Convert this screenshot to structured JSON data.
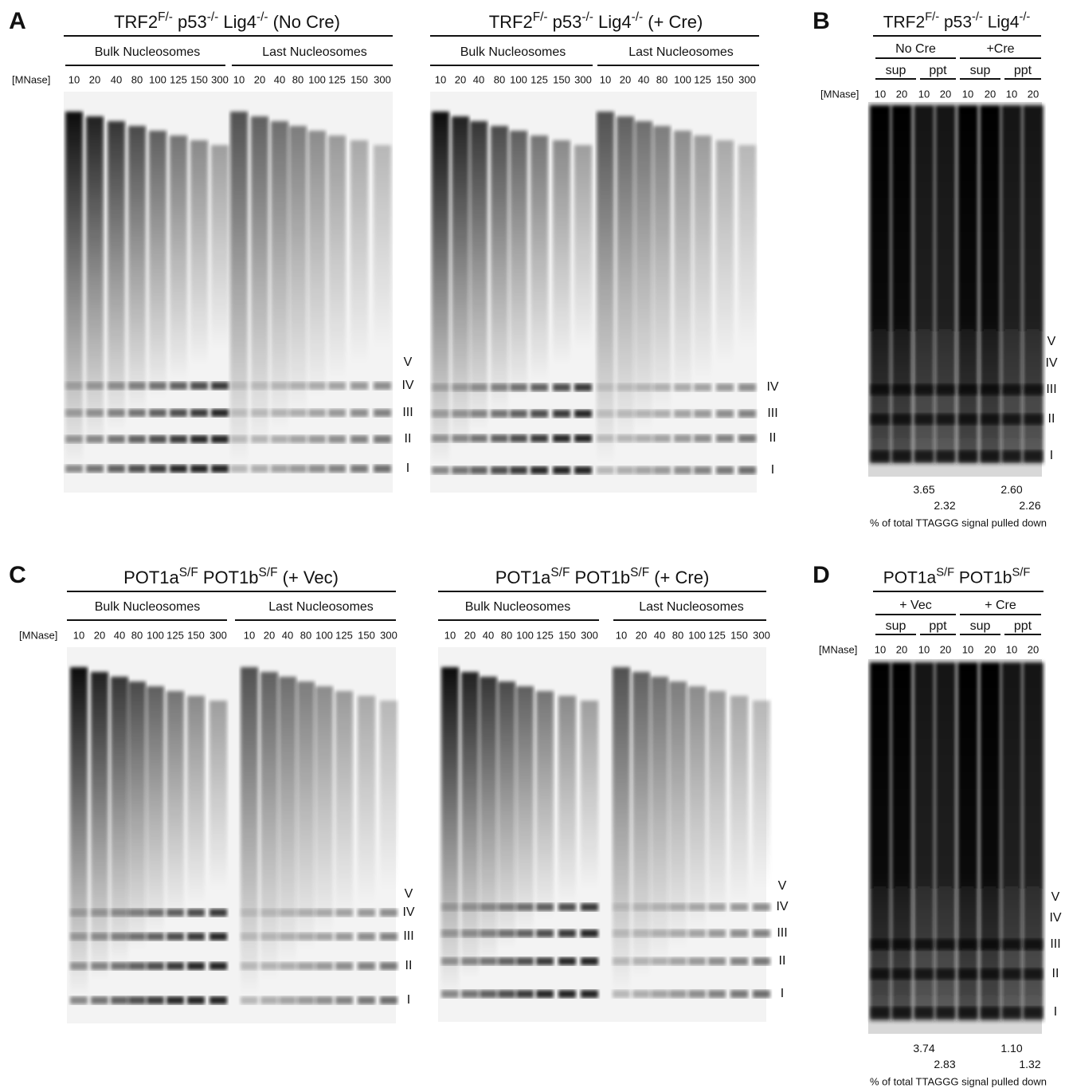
{
  "panels": [
    {
      "letter": "A",
      "mnase_label": "[MNase]",
      "lanes": [
        "10",
        "20",
        "40",
        "80",
        "100",
        "125",
        "150",
        "300"
      ],
      "gels": [
        {
          "title": [
            "TRF2",
            "F/-",
            " p53",
            "-/-",
            " Lig4",
            "-/-",
            " (No Cre)"
          ],
          "groups": [
            "Bulk Nucleosomes",
            "Last Nucleosomes"
          ],
          "markers": [
            "V",
            "IV",
            "III",
            "II",
            "I"
          ]
        },
        {
          "title": [
            "TRF2",
            "F/-",
            " p53",
            "-/-",
            " Lig4",
            "-/-",
            " (+ Cre)"
          ],
          "groups": [
            "Bulk Nucleosomes",
            "Last Nucleosomes"
          ],
          "markers": [
            "IV",
            "III",
            "II",
            "I"
          ]
        }
      ]
    },
    {
      "letter": "B",
      "title": [
        "TRF2",
        "F/-",
        " p53",
        "-/-",
        " Lig4",
        "-/-"
      ],
      "conditions": [
        "No Cre",
        "+Cre"
      ],
      "fractions": [
        "sup",
        "ppt"
      ],
      "mnase_label": "[MNase]",
      "lanes": [
        "10",
        "20"
      ],
      "markers": [
        "V",
        "IV",
        "III",
        "II",
        "I"
      ],
      "quant_top": [
        "3.65",
        "2.60"
      ],
      "quant_bottom": [
        "2.32",
        "2.26"
      ],
      "caption": "% of total TTAGGG signal pulled down"
    },
    {
      "letter": "C",
      "mnase_label": "[MNase]",
      "lanes": [
        "10",
        "20",
        "40",
        "80",
        "100",
        "125",
        "150",
        "300"
      ],
      "gels": [
        {
          "title": [
            "POT1a",
            "S/F",
            " POT1b",
            "S/F",
            " (+ Vec)"
          ],
          "groups": [
            "Bulk Nucleosomes",
            "Last Nucleosomes"
          ],
          "markers": [
            "V",
            "IV",
            "III",
            "II",
            "I"
          ]
        },
        {
          "title": [
            "POT1a",
            "S/F",
            " POT1b",
            "S/F",
            " (+ Cre)"
          ],
          "groups": [
            "Bulk Nucleosomes",
            "Last Nucleosomes"
          ],
          "markers": [
            "V",
            "IV",
            "III",
            "II",
            "I"
          ]
        }
      ]
    },
    {
      "letter": "D",
      "title": [
        "POT1a",
        "S/F",
        " POT1b",
        "S/F"
      ],
      "conditions": [
        "+ Vec",
        "+ Cre"
      ],
      "fractions": [
        "sup",
        "ppt"
      ],
      "mnase_label": "[MNase]",
      "lanes": [
        "10",
        "20"
      ],
      "markers": [
        "V",
        "IV",
        "III",
        "II",
        "I"
      ],
      "quant_top": [
        "3.74",
        "1.10"
      ],
      "quant_bottom": [
        "2.83",
        "1.32"
      ],
      "caption": "% of total TTAGGG signal pulled down"
    }
  ]
}
